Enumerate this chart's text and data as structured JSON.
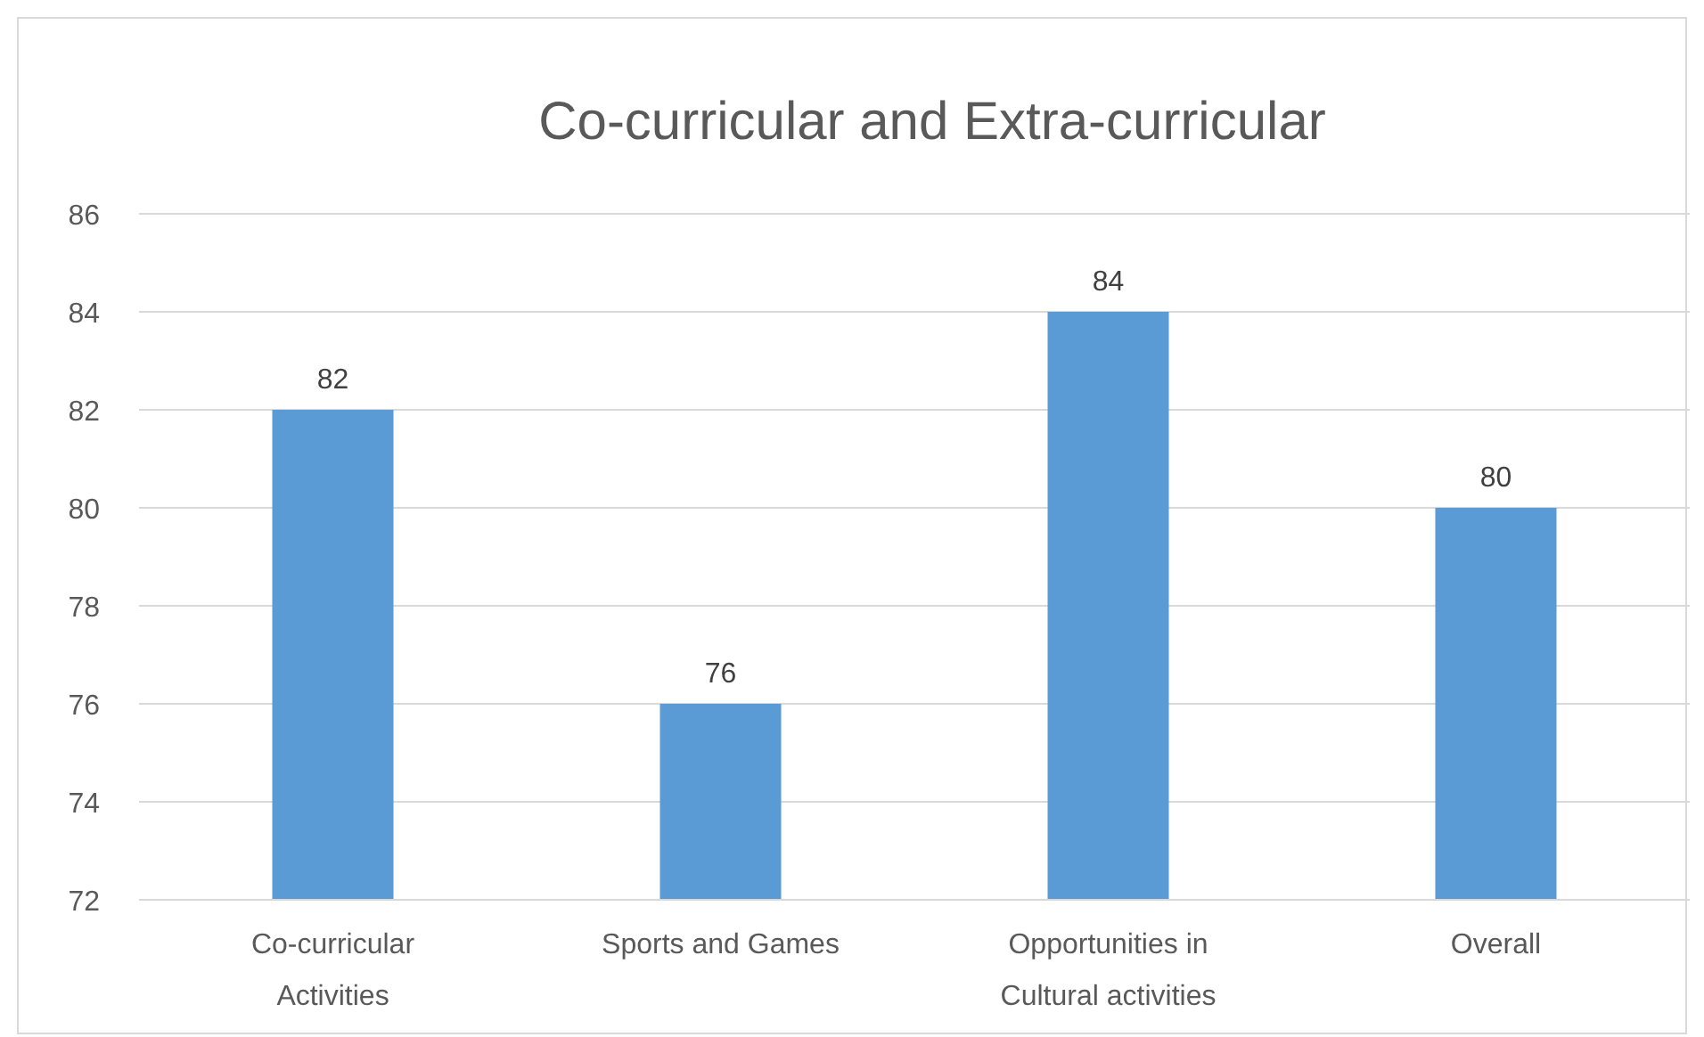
{
  "chart_data": {
    "type": "bar",
    "title": "Co-curricular and Extra-curricular",
    "categories": [
      "Co-curricular Activities",
      "Sports and Games",
      "Opportunities in Cultural activities",
      "Overall"
    ],
    "values": [
      82,
      76,
      84,
      80
    ],
    "color": "#5b9bd5",
    "ylim": [
      72,
      86
    ],
    "yticks": [
      72,
      74,
      76,
      78,
      80,
      82,
      84,
      86
    ],
    "grid": "y",
    "data_labels": true
  }
}
